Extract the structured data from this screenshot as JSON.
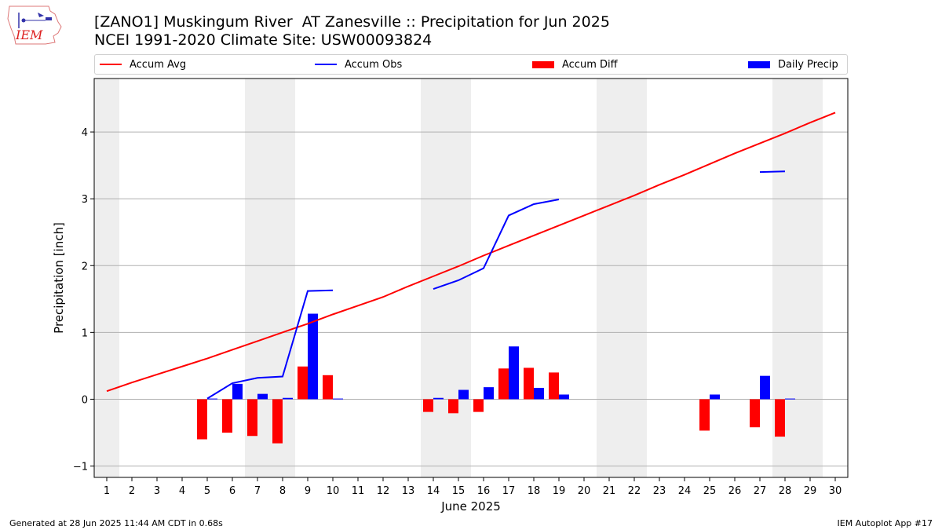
{
  "header": {
    "title_line1": "[ZANO1] Muskingum River  AT Zanesville :: Precipitation for Jun 2025",
    "title_line2": "NCEI 1991-2020 Climate Site: USW00093824",
    "logo_text": "IEM"
  },
  "footer": {
    "left": "Generated at 28 Jun 2025 11:44 AM CDT in 0.68s",
    "right": "IEM Autoplot App #17"
  },
  "colors": {
    "accum_avg": "#ff0000",
    "accum_obs": "#0000ff",
    "accum_diff": "#ff0000",
    "daily_precip": "#0000ff",
    "weekend_shade": "#eeeeee",
    "grid": "#b0b0b0"
  },
  "chart_data": {
    "type": "bar",
    "title": "[ZANO1] Muskingum River  AT Zanesville :: Precipitation for Jun 2025",
    "subtitle": "NCEI 1991-2020 Climate Site: USW00093824",
    "xlabel": "June 2025",
    "ylabel": "Precipitation [inch]",
    "xlim": [
      0.5,
      30.5
    ],
    "ylim": [
      -1.17,
      4.8
    ],
    "yticks": [
      -1,
      0,
      1,
      2,
      3,
      4
    ],
    "xticks": [
      1,
      2,
      3,
      4,
      5,
      6,
      7,
      8,
      9,
      10,
      11,
      12,
      13,
      14,
      15,
      16,
      17,
      18,
      19,
      20,
      21,
      22,
      23,
      24,
      25,
      26,
      27,
      28,
      29,
      30
    ],
    "grid": "horizontal",
    "legend_position": "top",
    "weekend_spans": [
      [
        0.5,
        1.5
      ],
      [
        6.5,
        8.5
      ],
      [
        13.5,
        15.5
      ],
      [
        20.5,
        22.5
      ],
      [
        27.5,
        29.5
      ]
    ],
    "legend": [
      "Accum Avg",
      "Accum Obs",
      "Accum Diff",
      "Daily Precip"
    ],
    "series": [
      {
        "name": "Accum Avg",
        "kind": "line",
        "x": [
          1,
          2,
          3,
          4,
          5,
          6,
          7,
          8,
          9,
          10,
          11,
          12,
          13,
          14,
          15,
          16,
          17,
          18,
          19,
          20,
          21,
          22,
          23,
          24,
          25,
          26,
          27,
          28,
          29,
          30
        ],
        "values": [
          0.12,
          0.25,
          0.37,
          0.49,
          0.61,
          0.74,
          0.87,
          1.0,
          1.13,
          1.27,
          1.4,
          1.53,
          1.69,
          1.84,
          1.99,
          2.15,
          2.3,
          2.45,
          2.6,
          2.75,
          2.9,
          3.05,
          3.21,
          3.36,
          3.52,
          3.68,
          3.83,
          3.98,
          4.14,
          4.29
        ]
      },
      {
        "name": "Accum Obs",
        "kind": "line",
        "segments": [
          {
            "x": [
              5,
              6,
              7,
              8,
              9,
              10
            ],
            "values": [
              0.01,
              0.24,
              0.32,
              0.34,
              1.62,
              1.63
            ]
          },
          {
            "x": [
              14,
              15,
              16,
              17,
              18,
              19
            ],
            "values": [
              1.65,
              1.78,
              1.96,
              2.75,
              2.92,
              2.99
            ]
          },
          {
            "x": [
              27,
              28
            ],
            "values": [
              3.4,
              3.41
            ]
          }
        ]
      },
      {
        "name": "Accum Diff",
        "kind": "bar",
        "x": [
          5,
          6,
          7,
          8,
          9,
          10,
          14,
          15,
          16,
          17,
          18,
          19,
          25,
          27,
          28
        ],
        "values": [
          -0.6,
          -0.5,
          -0.55,
          -0.66,
          0.49,
          0.36,
          -0.19,
          -0.21,
          -0.19,
          0.46,
          0.47,
          0.4,
          -0.47,
          -0.42,
          -0.56
        ]
      },
      {
        "name": "Daily Precip",
        "kind": "bar",
        "x": [
          5,
          6,
          7,
          8,
          9,
          10,
          14,
          15,
          16,
          17,
          18,
          19,
          25,
          27,
          28
        ],
        "values": [
          0.01,
          0.23,
          0.08,
          0.02,
          1.28,
          0.01,
          0.02,
          0.14,
          0.18,
          0.79,
          0.17,
          0.07,
          0.07,
          0.35,
          0.01
        ]
      }
    ]
  }
}
